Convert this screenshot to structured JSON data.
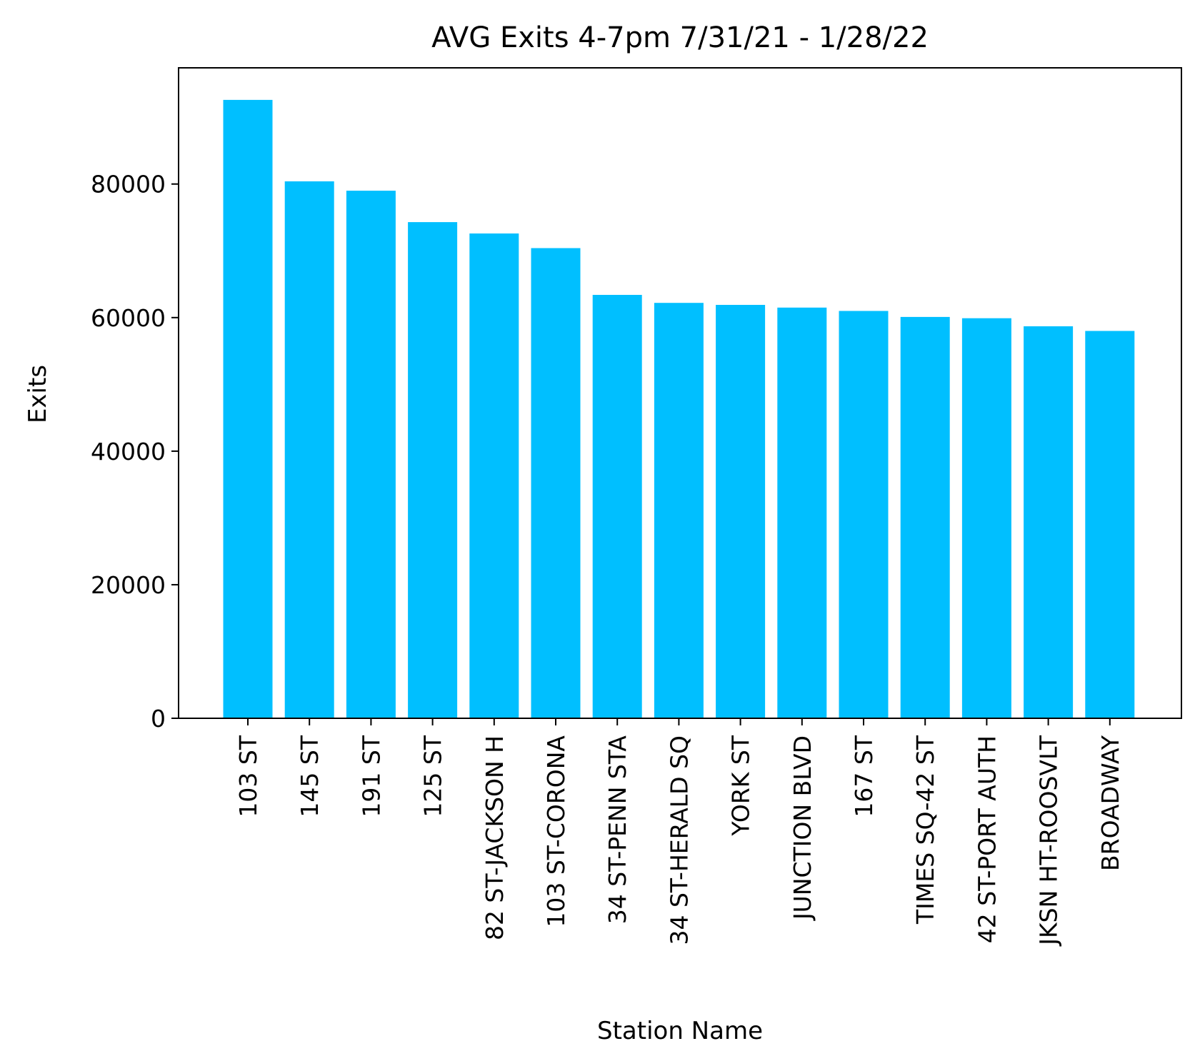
{
  "chart_data": {
    "type": "bar",
    "title": "AVG Exits 4-7pm 7/31/21 - 1/28/22",
    "xlabel": "Station Name",
    "ylabel": "Exits",
    "categories": [
      "103 ST",
      "145 ST",
      "191 ST",
      "125 ST",
      "82 ST-JACKSON H",
      "103 ST-CORONA",
      "34 ST-PENN STA",
      "34 ST-HERALD SQ",
      "YORK ST",
      "JUNCTION BLVD",
      "167 ST",
      "TIMES SQ-42 ST",
      "42 ST-PORT AUTH",
      "JKSN HT-ROOSVLT",
      "BROADWAY"
    ],
    "values": [
      92600,
      80400,
      79000,
      74300,
      72600,
      70400,
      63400,
      62200,
      61900,
      61500,
      61000,
      60100,
      59900,
      58700,
      58000
    ],
    "ylim": [
      0,
      97400
    ],
    "yticks": [
      0,
      20000,
      40000,
      60000,
      80000
    ],
    "bar_color": "#00bfff",
    "grid": false,
    "legend": "none"
  }
}
